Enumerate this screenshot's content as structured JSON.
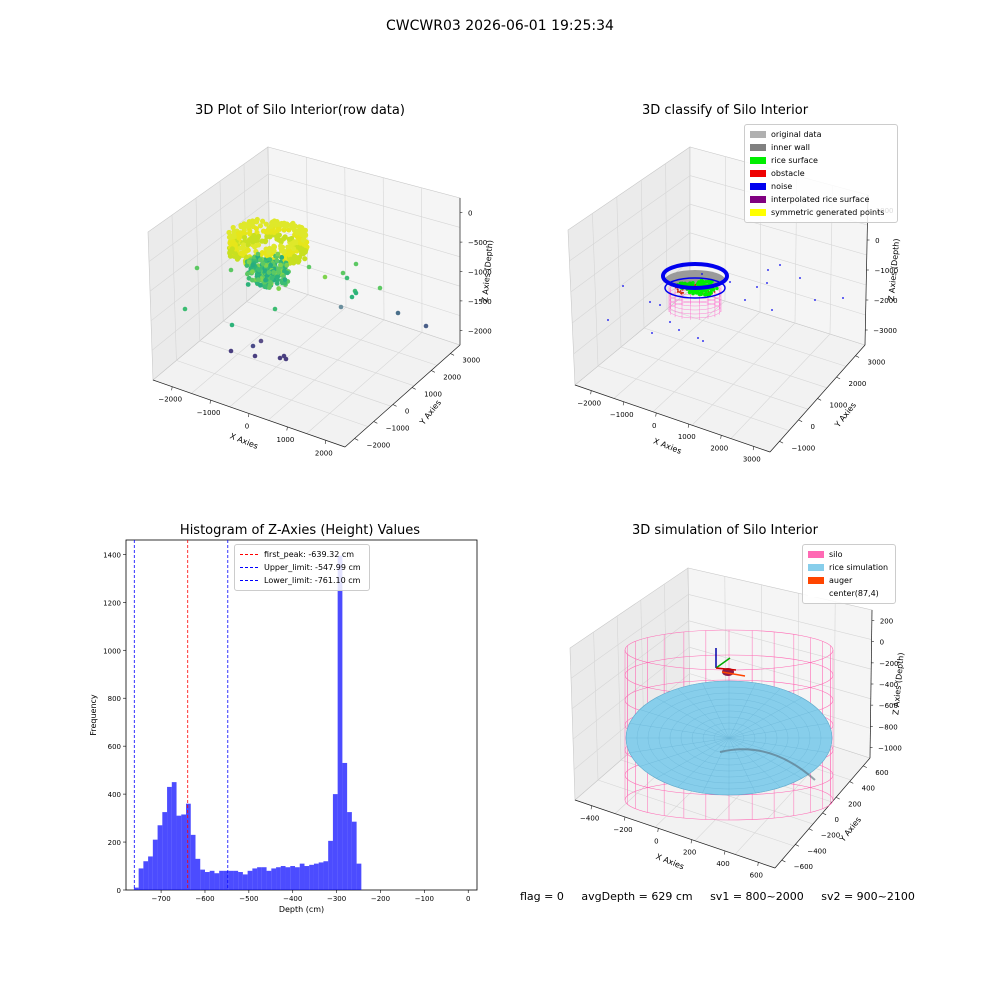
{
  "figure_title": "CWCWR03 2026-06-01 19:25:34",
  "status": {
    "flag": "flag = 0",
    "avg_depth": "avgDepth = 629 cm",
    "sv1": "sv1 = 800~2000",
    "sv2": "sv2 = 900~2100"
  },
  "chart_data": [
    {
      "type": "scatter3d",
      "title": "3D Plot of Silo Interior(row data)",
      "xlabel": "X Axies",
      "ylabel": "Y Axies",
      "zlabel": "Z Axies (Depth)",
      "x_ticks": [
        "−2000",
        "−1000",
        "0",
        "1000",
        "2000"
      ],
      "y_ticks": [
        "−2000",
        "−1000",
        "0",
        "1000",
        "2000",
        "3000"
      ],
      "z_ticks": [
        "0",
        "−500",
        "−1000",
        "−1500",
        "−2000"
      ],
      "grid": true
    },
    {
      "type": "scatter3d",
      "title": "3D classify of Silo Interior",
      "xlabel": "X Axies",
      "ylabel": "Y Axies",
      "zlabel": "Z Axies (Depth)",
      "x_ticks": [
        "−2000",
        "−1000",
        "0",
        "1000",
        "2000",
        "3000"
      ],
      "y_ticks": [
        "−1000",
        "0",
        "1000",
        "2000",
        "3000"
      ],
      "z_ticks": [
        "1000",
        "0",
        "−1000",
        "−2000",
        "−3000"
      ],
      "legend": [
        {
          "label": "original data",
          "color": "#b0b0b0"
        },
        {
          "label": "inner wall",
          "color": "#808080"
        },
        {
          "label": "rice surface",
          "color": "#00ee00"
        },
        {
          "label": "obstacle",
          "color": "#ee0000"
        },
        {
          "label": "noise",
          "color": "#0000ee"
        },
        {
          "label": "interpolated rice surface",
          "color": "#800080"
        },
        {
          "label": "symmetric generated points",
          "color": "#ffff00"
        }
      ],
      "legend_position": "top-right",
      "grid": true
    },
    {
      "type": "bar",
      "title": "Histogram of Z-Axies (Height) Values",
      "xlabel": "Depth (cm)",
      "ylabel": "Frequency",
      "xlim": [
        -780,
        20
      ],
      "ylim": [
        0,
        1460
      ],
      "x_ticks": [
        -700,
        -600,
        -500,
        -400,
        -300,
        -200,
        -100,
        0
      ],
      "x_tick_labels": [
        "−700",
        "−600",
        "−500",
        "−400",
        "−300",
        "−200",
        "−100",
        "0"
      ],
      "y_ticks": [
        0,
        200,
        400,
        600,
        800,
        1000,
        1200,
        1400
      ],
      "bin_start": -762,
      "bin_width": 10.8,
      "values": [
        10,
        90,
        120,
        140,
        210,
        270,
        325,
        430,
        450,
        310,
        315,
        360,
        230,
        130,
        85,
        75,
        80,
        70,
        80,
        80,
        80,
        80,
        75,
        65,
        80,
        90,
        95,
        95,
        80,
        90,
        95,
        100,
        95,
        100,
        95,
        110,
        100,
        105,
        110,
        115,
        120,
        205,
        400,
        1395,
        530,
        325,
        285,
        110
      ],
      "bar_color": "#0000ff",
      "lines": [
        {
          "label": "first_peak: -639.32 cm",
          "x": -639.32,
          "color": "#ff0000"
        },
        {
          "label": "Upper_limit: -547.99 cm",
          "x": -547.99,
          "color": "#0000ff"
        },
        {
          "label": "Lower_limit: -761.10 cm",
          "x": -761.1,
          "color": "#0000ff"
        }
      ],
      "legend_position": "top-center"
    },
    {
      "type": "surface3d",
      "title": "3D simulation of Silo Interior",
      "xlabel": "X Axies",
      "ylabel": "Y Axies",
      "zlabel": "Z Axies (Depth)",
      "x_ticks": [
        "−400",
        "−200",
        "0",
        "200",
        "400",
        "600"
      ],
      "y_ticks": [
        "−600",
        "−400",
        "−200",
        "0",
        "200",
        "400",
        "600"
      ],
      "z_ticks": [
        "200",
        "0",
        "−200",
        "−400",
        "−600",
        "−800",
        "−1000"
      ],
      "legend": [
        {
          "label": "silo",
          "color": "#ff69b4"
        },
        {
          "label": "rice simulation",
          "color": "#87ceeb"
        },
        {
          "label": "auger",
          "color": "#ff4500"
        },
        {
          "label": "center(87,4)",
          "color": "#ffffff"
        }
      ],
      "legend_position": "top-right"
    }
  ]
}
